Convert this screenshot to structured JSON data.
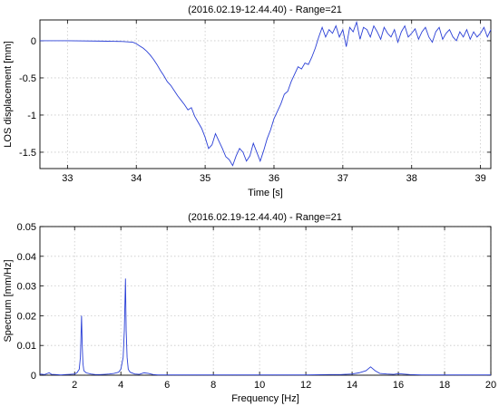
{
  "chart_data": [
    {
      "type": "line",
      "title": "(2016.02.19-12.44.40) - Range=21",
      "xlabel": "Time [s]",
      "ylabel": "LOS displacement [mm]",
      "xlim": [
        32.6,
        39.15
      ],
      "ylim": [
        -1.72,
        0.28
      ],
      "xticks": [
        33,
        34,
        35,
        36,
        37,
        38,
        39
      ],
      "yticks": [
        0,
        -0.5,
        -1,
        -1.5
      ],
      "ytick_labels": [
        "0",
        "-0.5",
        "-1",
        "-1.5"
      ],
      "grid": true,
      "color": "#2a3fd6",
      "series": [
        {
          "x": [
            32.6,
            33.0,
            33.5,
            33.8,
            33.95,
            34.0,
            34.05,
            34.1,
            34.15,
            34.2,
            34.25,
            34.3,
            34.35,
            34.4,
            34.45,
            34.5,
            34.55,
            34.6,
            34.65,
            34.7,
            34.75,
            34.8,
            34.85,
            34.9,
            34.95,
            35.0,
            35.05,
            35.1,
            35.15,
            35.2,
            35.25,
            35.3,
            35.35,
            35.4,
            35.45,
            35.5,
            35.55,
            35.6,
            35.65,
            35.7,
            35.75,
            35.8,
            35.85,
            35.9,
            35.95,
            36.0,
            36.05,
            36.1,
            36.15,
            36.2,
            36.25,
            36.3,
            36.35,
            36.4,
            36.45,
            36.5,
            36.55,
            36.6,
            36.65,
            36.7,
            36.75,
            36.8,
            36.85,
            36.9,
            36.95,
            37.0,
            37.05,
            37.1,
            37.15,
            37.2,
            37.25,
            37.3,
            37.35,
            37.4,
            37.45,
            37.5,
            37.55,
            37.6,
            37.65,
            37.7,
            37.75,
            37.8,
            37.85,
            37.9,
            37.95,
            38.0,
            38.05,
            38.1,
            38.15,
            38.2,
            38.25,
            38.3,
            38.35,
            38.4,
            38.45,
            38.5,
            38.55,
            38.6,
            38.65,
            38.7,
            38.75,
            38.8,
            38.85,
            38.9,
            38.95,
            39.0,
            39.05,
            39.1,
            39.15
          ],
          "y": [
            0.0,
            0.0,
            -0.005,
            -0.01,
            -0.02,
            -0.04,
            -0.07,
            -0.1,
            -0.14,
            -0.19,
            -0.25,
            -0.32,
            -0.4,
            -0.47,
            -0.55,
            -0.6,
            -0.67,
            -0.74,
            -0.8,
            -0.86,
            -0.93,
            -0.9,
            -1.02,
            -1.1,
            -1.18,
            -1.3,
            -1.45,
            -1.4,
            -1.25,
            -1.35,
            -1.45,
            -1.56,
            -1.6,
            -1.68,
            -1.55,
            -1.45,
            -1.5,
            -1.62,
            -1.55,
            -1.38,
            -1.5,
            -1.62,
            -1.48,
            -1.32,
            -1.2,
            -1.05,
            -0.95,
            -0.85,
            -0.72,
            -0.68,
            -0.55,
            -0.45,
            -0.35,
            -0.38,
            -0.3,
            -0.32,
            -0.22,
            -0.1,
            0.05,
            0.18,
            0.05,
            0.15,
            0.1,
            0.2,
            0.05,
            0.15,
            -0.08,
            0.18,
            0.12,
            0.25,
            0.02,
            0.18,
            0.15,
            0.05,
            0.2,
            0.12,
            0.02,
            0.18,
            0.1,
            0.05,
            0.15,
            -0.02,
            0.12,
            0.2,
            0.05,
            0.1,
            0.16,
            0.02,
            0.12,
            0.18,
            0.05,
            -0.02,
            0.12,
            0.18,
            0.02,
            0.1,
            0.15,
            0.05,
            0.0,
            0.12,
            0.05,
            0.15,
            0.02,
            0.12,
            0.05,
            0.1,
            0.18,
            0.05,
            0.15
          ]
        }
      ]
    },
    {
      "type": "line",
      "title": "(2016.02.19-12.44.40) - Range=21",
      "xlabel": "Frequency [Hz]",
      "ylabel": "Spectrum [mm/Hz]",
      "xlim": [
        0.5,
        20
      ],
      "ylim": [
        0,
        0.05
      ],
      "xticks": [
        2,
        4,
        6,
        8,
        10,
        12,
        14,
        16,
        18,
        20
      ],
      "yticks": [
        0,
        0.01,
        0.02,
        0.03,
        0.04,
        0.05
      ],
      "ytick_labels": [
        "0",
        "0.01",
        "0.02",
        "0.03",
        "0.04",
        "0.05"
      ],
      "grid": true,
      "color": "#2a3fd6",
      "series": [
        {
          "x": [
            0.5,
            0.7,
            0.9,
            1.0,
            1.2,
            1.4,
            1.6,
            1.8,
            2.0,
            2.1,
            2.2,
            2.25,
            2.3,
            2.33,
            2.36,
            2.4,
            2.5,
            2.7,
            2.9,
            3.1,
            3.3,
            3.5,
            3.7,
            3.9,
            4.0,
            4.1,
            4.15,
            4.2,
            4.23,
            4.27,
            4.32,
            4.4,
            4.6,
            4.8,
            5.0,
            5.2,
            5.4,
            5.6,
            6.0,
            6.5,
            7.0,
            7.5,
            8.0,
            8.5,
            9.0,
            9.5,
            10.0,
            11.0,
            12.0,
            13.0,
            13.5,
            14.0,
            14.3,
            14.6,
            14.8,
            15.0,
            15.2,
            15.5,
            15.8,
            16.0,
            16.5,
            17.0,
            18.0,
            19.0,
            20.0
          ],
          "y": [
            0.0004,
            0.0002,
            0.0008,
            0.0003,
            0.0002,
            0.0001,
            0.0002,
            0.0003,
            0.0004,
            0.0008,
            0.002,
            0.006,
            0.02,
            0.01,
            0.004,
            0.0015,
            0.0008,
            0.0004,
            0.0002,
            0.0002,
            0.0003,
            0.0004,
            0.0006,
            0.001,
            0.002,
            0.006,
            0.015,
            0.0325,
            0.015,
            0.006,
            0.002,
            0.001,
            0.0004,
            0.0003,
            0.0008,
            0.0006,
            0.0002,
            0.0001,
            0.0001,
            0.0001,
            0.0001,
            0.0001,
            0.0001,
            0.0001,
            0.0001,
            0.0001,
            0.0001,
            0.0001,
            0.0001,
            0.0002,
            0.0002,
            0.0004,
            0.0008,
            0.0015,
            0.0028,
            0.0015,
            0.0006,
            0.0004,
            0.0003,
            0.0005,
            0.0002,
            0.0001,
            0.0001,
            0.0001,
            0.0001
          ]
        }
      ]
    }
  ]
}
